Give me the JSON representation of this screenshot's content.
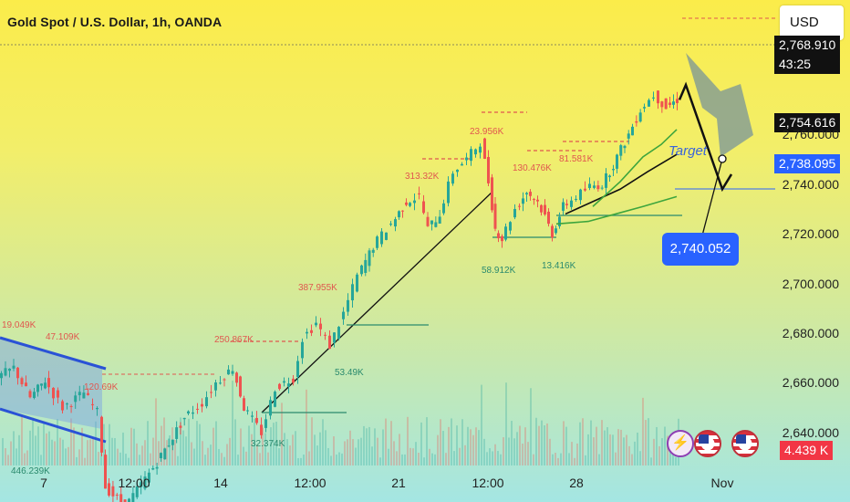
{
  "header": {
    "title": "Gold Spot / U.S. Dollar, 1h, OANDA",
    "currency_button": "USD"
  },
  "price_tags": {
    "current_price_partial": "2,768.910",
    "countdown": "43:25",
    "ema_value": "2,754.616",
    "target_line_value": "2,738.095",
    "last_volume": "4.439 K"
  },
  "annotations": {
    "target_label": "Target",
    "target_callout": "2,740.052"
  },
  "colors": {
    "up": "#26a69a",
    "down": "#ef5350",
    "projection": "#5b7fa6",
    "target": "#2962ff",
    "channel": "#8ab6e8",
    "background_top": "#fbec4a",
    "background_bottom": "#a4e6e3"
  },
  "icons": [
    "lightning-icon",
    "us-flag-icon",
    "us-flag-icon"
  ],
  "chart_data": {
    "type": "candlestick",
    "title": "Gold Spot / U.S. Dollar, 1h, OANDA",
    "y_ticks": [
      "2,640.000",
      "2,660.000",
      "2,680.000",
      "2,700.000",
      "2,720.000",
      "2,740.000",
      "2,760.000"
    ],
    "y_range": [
      2630,
      2775
    ],
    "x_ticks": [
      "7",
      "12:00",
      "14",
      "12:00",
      "21",
      "12:00",
      "28",
      "Nov"
    ],
    "price_path": [
      [
        0,
        2662
      ],
      [
        18,
        2666
      ],
      [
        36,
        2654
      ],
      [
        52,
        2661
      ],
      [
        72,
        2650
      ],
      [
        95,
        2656
      ],
      [
        110,
        2648
      ],
      [
        118,
        2618
      ],
      [
        140,
        2610
      ],
      [
        175,
        2628
      ],
      [
        205,
        2646
      ],
      [
        225,
        2652
      ],
      [
        240,
        2660
      ],
      [
        258,
        2666
      ],
      [
        270,
        2650
      ],
      [
        290,
        2640
      ],
      [
        305,
        2658
      ],
      [
        325,
        2662
      ],
      [
        335,
        2678
      ],
      [
        350,
        2684
      ],
      [
        365,
        2675
      ],
      [
        380,
        2688
      ],
      [
        395,
        2703
      ],
      [
        412,
        2715
      ],
      [
        432,
        2724
      ],
      [
        448,
        2733
      ],
      [
        463,
        2735
      ],
      [
        472,
        2722
      ],
      [
        485,
        2728
      ],
      [
        500,
        2745
      ],
      [
        515,
        2750
      ],
      [
        530,
        2757
      ],
      [
        538,
        2741
      ],
      [
        545,
        2722
      ],
      [
        553,
        2718
      ],
      [
        568,
        2730
      ],
      [
        580,
        2737
      ],
      [
        592,
        2733
      ],
      [
        600,
        2727
      ],
      [
        608,
        2720
      ],
      [
        620,
        2731
      ],
      [
        635,
        2735
      ],
      [
        650,
        2739
      ],
      [
        663,
        2740
      ],
      [
        675,
        2748
      ],
      [
        692,
        2760
      ],
      [
        705,
        2770
      ],
      [
        720,
        2776
      ],
      [
        733,
        2771
      ],
      [
        745,
        2774
      ]
    ],
    "ema_fast": [
      [
        650,
        2731
      ],
      [
        680,
        2741
      ],
      [
        705,
        2751
      ],
      [
        725,
        2756
      ],
      [
        742,
        2762
      ]
    ],
    "ema_mid": [
      [
        620,
        2728
      ],
      [
        650,
        2733
      ],
      [
        680,
        2738
      ],
      [
        710,
        2745
      ],
      [
        742,
        2752
      ]
    ],
    "ema_slow": [
      [
        610,
        2724
      ],
      [
        645,
        2725
      ],
      [
        675,
        2728
      ],
      [
        705,
        2731
      ],
      [
        742,
        2735
      ]
    ],
    "projection": [
      [
        745,
        2774
      ],
      [
        752,
        2780
      ],
      [
        792,
        2738
      ],
      [
        802,
        2744
      ]
    ],
    "target_price": 2738.095,
    "volume_labels": [
      {
        "text": "19.049K",
        "x": 2,
        "y": 2683,
        "type": "down"
      },
      {
        "text": "47.109K",
        "x": 50,
        "y": 2678,
        "type": "down"
      },
      {
        "text": "120.69K",
        "x": 92,
        "y": 2658,
        "type": "down"
      },
      {
        "text": "446.239K",
        "x": 12,
        "y": 2624,
        "type": "up"
      },
      {
        "text": "250.867K",
        "x": 235,
        "y": 2677,
        "type": "down"
      },
      {
        "text": "32.374K",
        "x": 275,
        "y": 2635,
        "type": "up"
      },
      {
        "text": "387.955K",
        "x": 327,
        "y": 2698,
        "type": "down"
      },
      {
        "text": "53.49K",
        "x": 367,
        "y": 2664,
        "type": "up"
      },
      {
        "text": "313.32K",
        "x": 444,
        "y": 2743,
        "type": "down"
      },
      {
        "text": "23.956K",
        "x": 515,
        "y": 2761,
        "type": "down"
      },
      {
        "text": "58.912K",
        "x": 528,
        "y": 2705,
        "type": "up"
      },
      {
        "text": "130.476K",
        "x": 562,
        "y": 2746,
        "type": "down"
      },
      {
        "text": "81.581K",
        "x": 613,
        "y": 2750,
        "type": "down"
      },
      {
        "text": "13.416K",
        "x": 594,
        "y": 2707,
        "type": "up"
      }
    ]
  }
}
